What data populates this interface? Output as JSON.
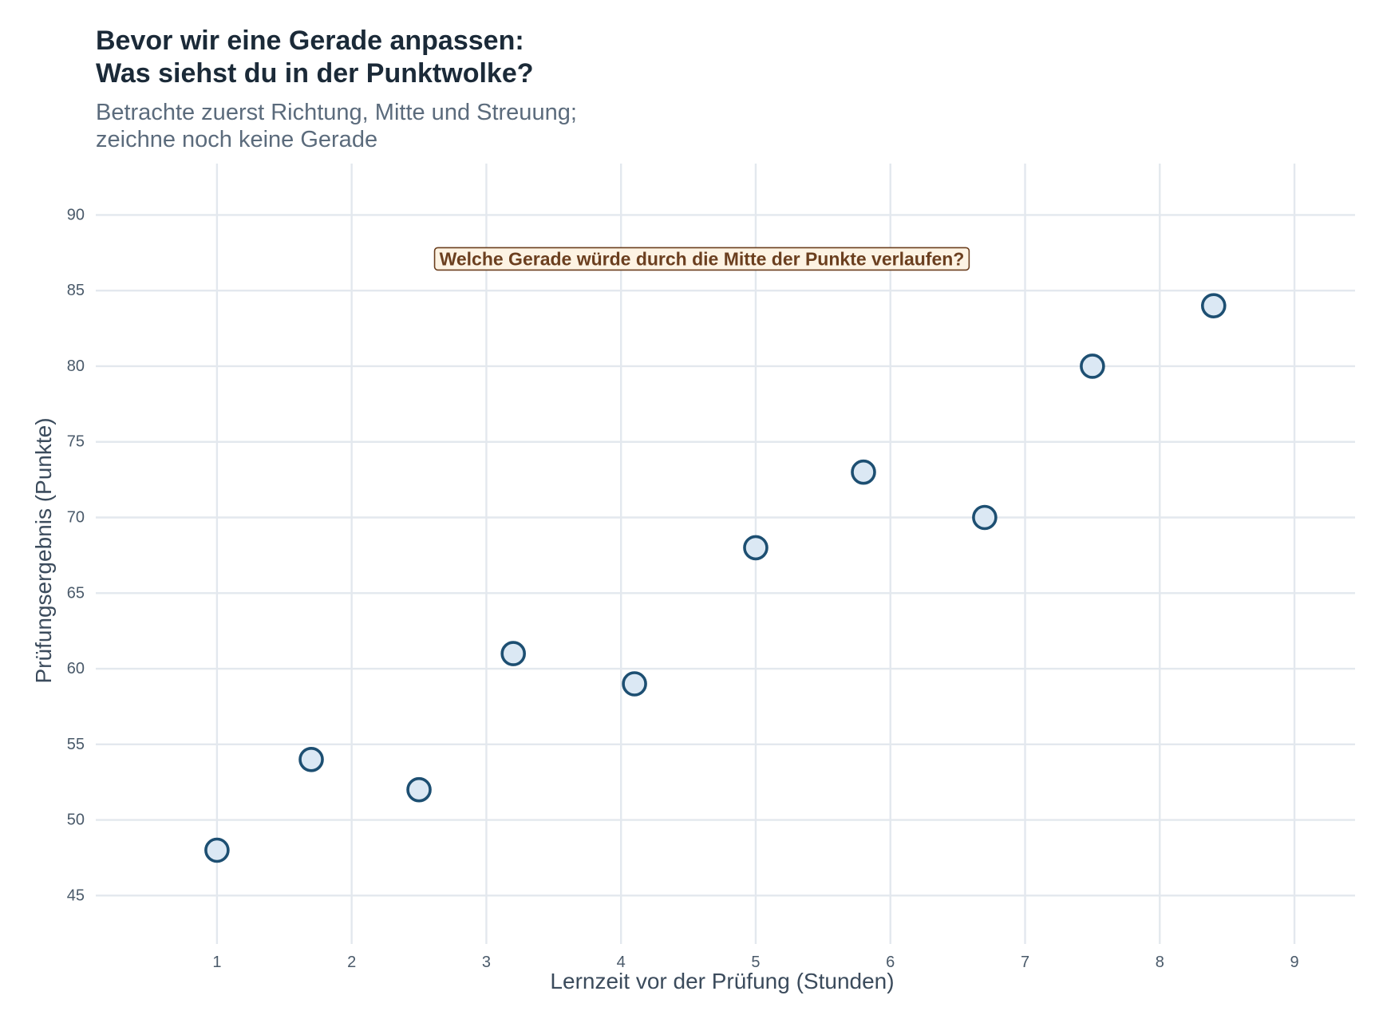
{
  "chart_data": {
    "type": "scatter",
    "title_lines": [
      "Bevor wir eine Gerade anpassen:",
      "Was siehst du in der Punktwolke?"
    ],
    "subtitle_lines": [
      "Betrachte zuerst Richtung, Mitte und Streuung;",
      "zeichne noch keine Gerade"
    ],
    "xlabel": "Lernzeit vor der Prüfung (Stunden)",
    "ylabel": "Prüfungsergebnis (Punkte)",
    "xlim": [
      0.1,
      9.45
    ],
    "ylim": [
      41.8,
      93.4
    ],
    "x_ticks": [
      1,
      2,
      3,
      4,
      5,
      6,
      7,
      8,
      9
    ],
    "y_ticks": [
      45,
      50,
      55,
      60,
      65,
      70,
      75,
      80,
      85,
      90
    ],
    "grid": true,
    "colors": {
      "point_fill": "#dbe8f4",
      "point_stroke": "#1d4f72",
      "annotation_text": "#6b3f1f",
      "annotation_fill": "#fdf3e3"
    },
    "points": [
      {
        "x": 1.0,
        "y": 48
      },
      {
        "x": 1.7,
        "y": 54
      },
      {
        "x": 2.5,
        "y": 52
      },
      {
        "x": 3.2,
        "y": 61
      },
      {
        "x": 4.1,
        "y": 59
      },
      {
        "x": 5.0,
        "y": 68
      },
      {
        "x": 5.8,
        "y": 73
      },
      {
        "x": 6.7,
        "y": 70
      },
      {
        "x": 7.5,
        "y": 80
      },
      {
        "x": 8.4,
        "y": 84
      }
    ],
    "annotation": {
      "text": "Welche Gerade würde durch die Mitte der Punkte verlaufen?",
      "x": 4.6,
      "y": 87.1
    }
  }
}
